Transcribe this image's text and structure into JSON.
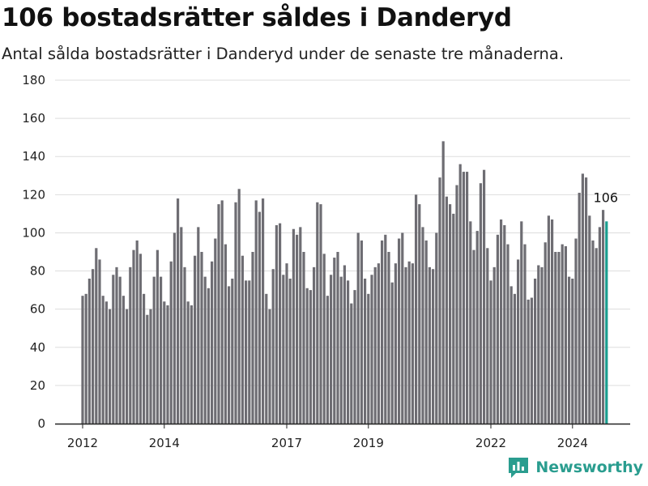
{
  "header": {
    "title": "106 bostadsrätter såldes i Danderyd",
    "subtitle": "Antal sålda bostadsrätter i Danderyd under de senaste tre månaderna."
  },
  "brand": {
    "name": "Newsworthy",
    "icon": "newsworthy-logo-icon",
    "color": "#2a9d8f"
  },
  "colors": {
    "bar": "#6e6d73",
    "highlight": "#1a9e8f",
    "grid": "#dddddd",
    "axis": "#222222"
  },
  "chart_data": {
    "type": "bar",
    "title": "106 bostadsrätter såldes i Danderyd",
    "subtitle": "Antal sålda bostadsrätter i Danderyd under de senaste tre månaderna.",
    "x_tick_labels": [
      "2012",
      "2014",
      "2017",
      "2019",
      "2022",
      "2024"
    ],
    "x_tick_bar_index": [
      0,
      24,
      60,
      84,
      120,
      144
    ],
    "ylim": [
      0,
      180
    ],
    "y_ticks": [
      0,
      20,
      40,
      60,
      80,
      100,
      120,
      140,
      160,
      180
    ],
    "grid": true,
    "highlight_last": true,
    "last_value_label": "106",
    "values": [
      67,
      68,
      76,
      81,
      92,
      86,
      67,
      64,
      60,
      78,
      82,
      77,
      67,
      60,
      82,
      91,
      96,
      89,
      68,
      57,
      60,
      77,
      91,
      77,
      64,
      62,
      85,
      100,
      118,
      103,
      82,
      64,
      62,
      88,
      103,
      90,
      77,
      71,
      85,
      97,
      115,
      117,
      94,
      72,
      76,
      116,
      123,
      88,
      75,
      75,
      90,
      117,
      111,
      118,
      68,
      60,
      81,
      104,
      105,
      78,
      84,
      76,
      102,
      99,
      103,
      90,
      71,
      70,
      82,
      116,
      115,
      89,
      67,
      78,
      87,
      90,
      77,
      83,
      75,
      63,
      70,
      100,
      96,
      76,
      68,
      78,
      82,
      84,
      96,
      99,
      90,
      74,
      84,
      97,
      100,
      82,
      85,
      84,
      120,
      115,
      103,
      96,
      82,
      81,
      100,
      129,
      148,
      119,
      115,
      110,
      125,
      136,
      132,
      132,
      106,
      91,
      101,
      126,
      133,
      92,
      75,
      82,
      99,
      107,
      104,
      94,
      72,
      68,
      86,
      106,
      94,
      65,
      66,
      76,
      83,
      82,
      95,
      109,
      107,
      90,
      90,
      94,
      93,
      77,
      76,
      97,
      121,
      131,
      129,
      109,
      96,
      92,
      103,
      112,
      106
    ]
  }
}
